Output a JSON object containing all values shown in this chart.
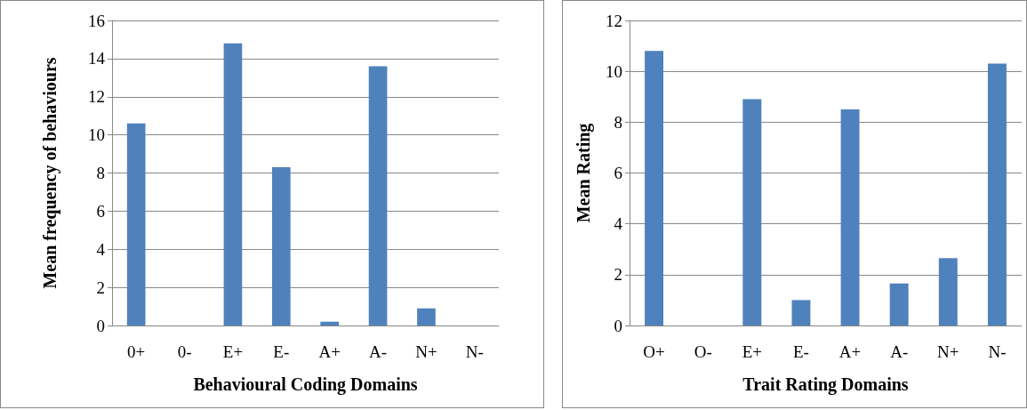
{
  "chart_data": [
    {
      "type": "bar",
      "xlabel": "Behavioural Coding Domains",
      "ylabel": "Mean frequency of behaviours",
      "categories": [
        "0+",
        "0-",
        "E+",
        "E-",
        "A+",
        "A-",
        "N+",
        "N-"
      ],
      "values": [
        10.6,
        0,
        14.8,
        8.3,
        0.2,
        13.6,
        0.9,
        0
      ],
      "color": "#4f81bd",
      "ylim": [
        0,
        16
      ],
      "yticks": [
        0,
        2,
        4,
        6,
        8,
        10,
        12,
        14,
        16
      ],
      "grid": "y"
    },
    {
      "type": "bar",
      "xlabel": "Trait Rating Domains",
      "ylabel": "Mean Rating",
      "categories": [
        "O+",
        "O-",
        "E+",
        "E-",
        "A+",
        "A-",
        "N+",
        "N-"
      ],
      "values": [
        10.8,
        0,
        8.9,
        1.0,
        8.5,
        1.65,
        2.65,
        10.3
      ],
      "color": "#4f81bd",
      "ylim": [
        0,
        12
      ],
      "yticks": [
        0,
        2,
        4,
        6,
        8,
        10,
        12
      ],
      "grid": "y"
    }
  ]
}
